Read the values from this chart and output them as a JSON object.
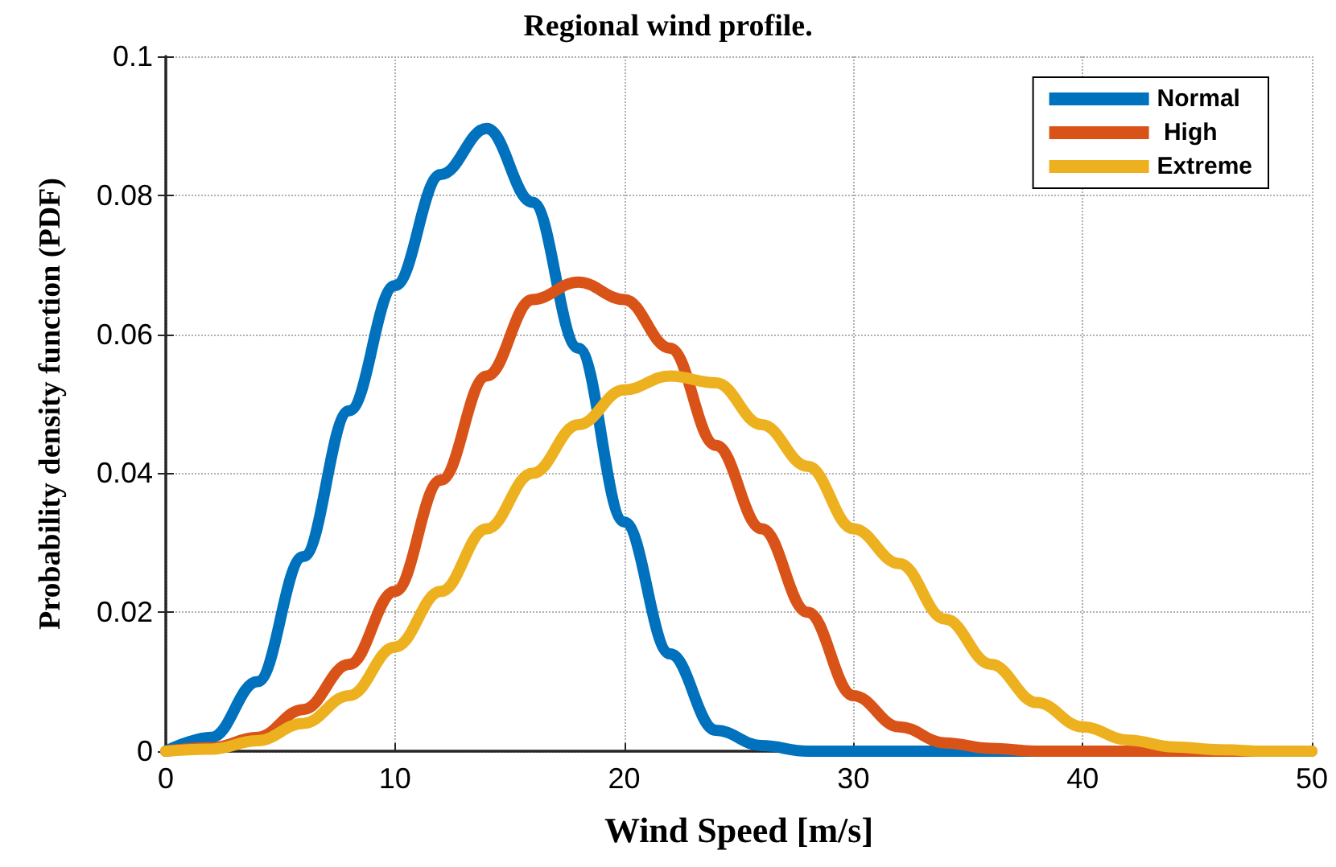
{
  "chart_data": {
    "type": "line",
    "title": "Regional wind profile.",
    "xlabel": "Wind Speed [m/s]",
    "ylabel": "Probability density function (PDF)",
    "xlim": [
      0,
      50
    ],
    "xticks": [
      0,
      10,
      20,
      30,
      40,
      50
    ],
    "ylim": [
      0,
      0.1
    ],
    "yticks": [
      0,
      0.02,
      0.04,
      0.06,
      0.08,
      0.1
    ],
    "grid": true,
    "legend": "top right",
    "marker": "none",
    "line_style": "solid",
    "x": [
      0,
      2,
      4,
      6,
      8,
      10,
      12,
      14,
      16,
      18,
      20,
      22,
      24,
      26,
      28,
      30,
      32,
      34,
      36,
      38,
      40,
      42,
      44,
      46,
      48,
      50
    ],
    "series": [
      {
        "name": "Normal",
        "color": "#0072bd",
        "values": [
          0,
          0.002,
          0.01,
          0.028,
          0.049,
          0.067,
          0.083,
          0.0896,
          0.079,
          0.058,
          0.033,
          0.014,
          0.003,
          0.0008,
          0,
          0,
          0,
          0,
          0,
          0,
          0,
          null,
          null,
          null,
          null,
          null
        ]
      },
      {
        "name": " High",
        "color": "#d95319",
        "values": [
          0,
          0.0005,
          0.002,
          0.006,
          0.0125,
          0.023,
          0.039,
          0.054,
          0.065,
          0.0675,
          0.065,
          0.058,
          0.044,
          0.032,
          0.02,
          0.008,
          0.0035,
          0.0012,
          0.0004,
          0,
          0,
          0,
          0,
          0,
          0,
          0
        ]
      },
      {
        "name": "Extreme",
        "color": "#edb120",
        "values": [
          0,
          0.0003,
          0.0015,
          0.004,
          0.008,
          0.015,
          0.023,
          0.032,
          0.04,
          0.047,
          0.052,
          0.054,
          0.053,
          0.047,
          0.041,
          0.032,
          0.027,
          0.019,
          0.0125,
          0.007,
          0.0035,
          0.0016,
          0.0006,
          0.0002,
          0,
          0
        ]
      }
    ]
  }
}
